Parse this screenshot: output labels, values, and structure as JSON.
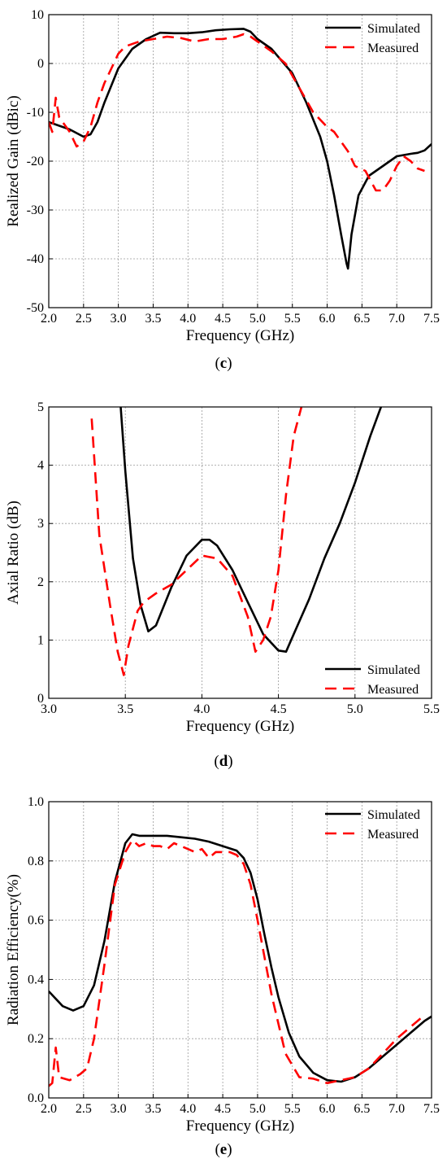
{
  "panels": [
    {
      "caption": "(c)",
      "chart_data": {
        "type": "line",
        "xlabel": "Frequency (GHz)",
        "ylabel": "Realized Gain (dBic)",
        "xlim": [
          2.0,
          7.5
        ],
        "ylim": [
          -50,
          10
        ],
        "xticks": [
          2.0,
          2.5,
          3.0,
          3.5,
          4.0,
          4.5,
          5.0,
          5.5,
          6.0,
          6.5,
          7.0,
          7.5
        ],
        "xtick_labels": [
          "2.0",
          "2.5",
          "3.0",
          "3.5",
          "4.0",
          "4.5",
          "5.0",
          "5.5",
          "6.0",
          "6.5",
          "7.0",
          "7.5"
        ],
        "yticks": [
          -50,
          -40,
          -30,
          -20,
          -10,
          0,
          10
        ],
        "ytick_labels": [
          "-50",
          "-40",
          "-30",
          "-20",
          "-10",
          "0",
          "10"
        ],
        "grid": true,
        "legend_position": "top-right",
        "series": [
          {
            "name": "Simulated",
            "color": "#000000",
            "dash": "solid",
            "x": [
              2.0,
              2.3,
              2.5,
              2.6,
              2.7,
              2.8,
              3.0,
              3.2,
              3.4,
              3.6,
              3.8,
              4.0,
              4.2,
              4.4,
              4.6,
              4.8,
              4.9,
              5.0,
              5.2,
              5.5,
              5.7,
              5.9,
              6.0,
              6.1,
              6.2,
              6.28,
              6.3,
              6.35,
              6.45,
              6.6,
              6.8,
              7.0,
              7.2,
              7.3,
              7.4,
              7.5
            ],
            "y": [
              -12,
              -13.5,
              -15,
              -14.5,
              -12,
              -8,
              -1,
              3,
              5,
              6.3,
              6.2,
              6.2,
              6.4,
              6.8,
              7.0,
              7.1,
              6.5,
              5.0,
              3,
              -2,
              -8,
              -15,
              -20,
              -27,
              -35,
              -41,
              -42,
              -35,
              -27,
              -23,
              -21,
              -19,
              -18.5,
              -18.3,
              -17.8,
              -16.5
            ]
          },
          {
            "name": "Measured",
            "color": "#ff0000",
            "dash": "dashed",
            "x": [
              2.0,
              2.05,
              2.1,
              2.15,
              2.3,
              2.4,
              2.5,
              2.6,
              2.7,
              2.8,
              2.9,
              3.0,
              3.1,
              3.3,
              3.5,
              3.7,
              3.9,
              4.1,
              4.3,
              4.5,
              4.7,
              4.8,
              4.9,
              5.0,
              5.2,
              5.4,
              5.6,
              5.8,
              6.0,
              6.1,
              6.3,
              6.4,
              6.55,
              6.7,
              6.8,
              6.9,
              7.0,
              7.1,
              7.2,
              7.3,
              7.4
            ],
            "y": [
              -12,
              -14,
              -7,
              -11,
              -14,
              -17,
              -16,
              -13,
              -8,
              -4,
              -1,
              2,
              3.5,
              4.5,
              5,
              5.5,
              5.2,
              4.5,
              5,
              5,
              5.5,
              6,
              5.5,
              4.5,
              2.5,
              0,
              -5,
              -10,
              -13,
              -14,
              -18,
              -21,
              -22,
              -26,
              -26,
              -24,
              -21,
              -19,
              -20,
              -21.5,
              -22
            ]
          }
        ]
      }
    },
    {
      "caption": "(d)",
      "chart_data": {
        "type": "line",
        "xlabel": "Frequency (GHz)",
        "ylabel": "Axial Ratio (dB)",
        "xlim": [
          3.0,
          5.5
        ],
        "ylim": [
          0,
          5
        ],
        "xticks": [
          3.0,
          3.5,
          4.0,
          4.5,
          5.0,
          5.5
        ],
        "xtick_labels": [
          "3.0",
          "3.5",
          "4.0",
          "4.5",
          "5.0",
          "5.5"
        ],
        "yticks": [
          0,
          1,
          2,
          3,
          4,
          5
        ],
        "ytick_labels": [
          "0",
          "1",
          "2",
          "3",
          "4",
          "5"
        ],
        "grid": true,
        "legend_position": "bottom-right",
        "series": [
          {
            "name": "Simulated",
            "color": "#000000",
            "dash": "solid",
            "x": [
              3.47,
              3.5,
              3.55,
              3.6,
              3.65,
              3.7,
              3.8,
              3.9,
              4.0,
              4.05,
              4.1,
              4.2,
              4.3,
              4.4,
              4.5,
              4.55,
              4.6,
              4.7,
              4.8,
              4.9,
              5.0,
              5.1,
              5.17
            ],
            "y": [
              5.0,
              3.9,
              2.4,
              1.6,
              1.15,
              1.25,
              1.9,
              2.45,
              2.72,
              2.72,
              2.62,
              2.2,
              1.65,
              1.1,
              0.82,
              0.8,
              1.1,
              1.7,
              2.4,
              3.0,
              3.7,
              4.5,
              5.0
            ]
          },
          {
            "name": "Measured",
            "color": "#ff0000",
            "dash": "dashed",
            "x": [
              3.28,
              3.33,
              3.4,
              3.45,
              3.49,
              3.52,
              3.58,
              3.62,
              3.7,
              3.8,
              3.9,
              4.0,
              4.1,
              4.2,
              4.3,
              4.35,
              4.4,
              4.45,
              4.5,
              4.55,
              4.6,
              4.65
            ],
            "y": [
              4.8,
              2.8,
              1.6,
              0.8,
              0.4,
              0.9,
              1.5,
              1.65,
              1.8,
              1.95,
              2.2,
              2.45,
              2.4,
              2.1,
              1.4,
              0.8,
              1.0,
              1.4,
              2.2,
              3.5,
              4.5,
              5.0
            ]
          }
        ]
      }
    },
    {
      "caption": "(e)",
      "chart_data": {
        "type": "line",
        "xlabel": "Frequency (GHz)",
        "ylabel": "Radiation Efficiency(%)",
        "xlim": [
          2.0,
          7.5
        ],
        "ylim": [
          0.0,
          1.0
        ],
        "xticks": [
          2.0,
          2.5,
          3.0,
          3.5,
          4.0,
          4.5,
          5.0,
          5.5,
          6.0,
          6.5,
          7.0,
          7.5
        ],
        "xtick_labels": [
          "2.0",
          "2.5",
          "3.0",
          "3.5",
          "4.0",
          "4.5",
          "5.0",
          "5.5",
          "6.0",
          "6.5",
          "7.0",
          "7.5"
        ],
        "yticks": [
          0.0,
          0.2,
          0.4,
          0.6,
          0.8,
          1.0
        ],
        "ytick_labels": [
          "0.0",
          "0.2",
          "0.4",
          "0.6",
          "0.8",
          "1.0"
        ],
        "grid": true,
        "legend_position": "top-right",
        "series": [
          {
            "name": "Simulated",
            "color": "#000000",
            "dash": "solid",
            "x": [
              2.0,
              2.2,
              2.35,
              2.5,
              2.65,
              2.8,
              2.95,
              3.1,
              3.2,
              3.3,
              3.5,
              3.7,
              3.9,
              4.1,
              4.3,
              4.5,
              4.7,
              4.8,
              4.9,
              5.0,
              5.1,
              5.2,
              5.3,
              5.45,
              5.6,
              5.8,
              6.0,
              6.2,
              6.4,
              6.6,
              6.8,
              7.0,
              7.2,
              7.4,
              7.5
            ],
            "y": [
              0.36,
              0.31,
              0.295,
              0.31,
              0.38,
              0.53,
              0.73,
              0.86,
              0.89,
              0.885,
              0.885,
              0.885,
              0.88,
              0.875,
              0.865,
              0.85,
              0.835,
              0.81,
              0.76,
              0.67,
              0.55,
              0.44,
              0.34,
              0.22,
              0.14,
              0.085,
              0.06,
              0.055,
              0.07,
              0.1,
              0.14,
              0.18,
              0.22,
              0.26,
              0.275
            ]
          },
          {
            "name": "Measured",
            "color": "#ff0000",
            "dash": "dashed",
            "x": [
              2.0,
              2.05,
              2.1,
              2.15,
              2.3,
              2.45,
              2.55,
              2.65,
              2.8,
              2.95,
              3.1,
              3.2,
              3.3,
              3.4,
              3.5,
              3.6,
              3.7,
              3.8,
              3.9,
              4.0,
              4.1,
              4.2,
              4.3,
              4.4,
              4.5,
              4.6,
              4.7,
              4.8,
              4.9,
              5.0,
              5.2,
              5.4,
              5.6,
              5.8,
              6.0,
              6.2,
              6.4,
              6.6,
              6.8,
              7.0,
              7.2,
              7.4
            ],
            "y": [
              0.04,
              0.05,
              0.17,
              0.07,
              0.06,
              0.08,
              0.1,
              0.2,
              0.45,
              0.72,
              0.83,
              0.87,
              0.85,
              0.86,
              0.85,
              0.85,
              0.84,
              0.86,
              0.85,
              0.84,
              0.83,
              0.84,
              0.81,
              0.83,
              0.83,
              0.83,
              0.82,
              0.79,
              0.72,
              0.6,
              0.35,
              0.15,
              0.07,
              0.065,
              0.05,
              0.06,
              0.07,
              0.1,
              0.15,
              0.2,
              0.24,
              0.28
            ]
          }
        ]
      }
    }
  ]
}
